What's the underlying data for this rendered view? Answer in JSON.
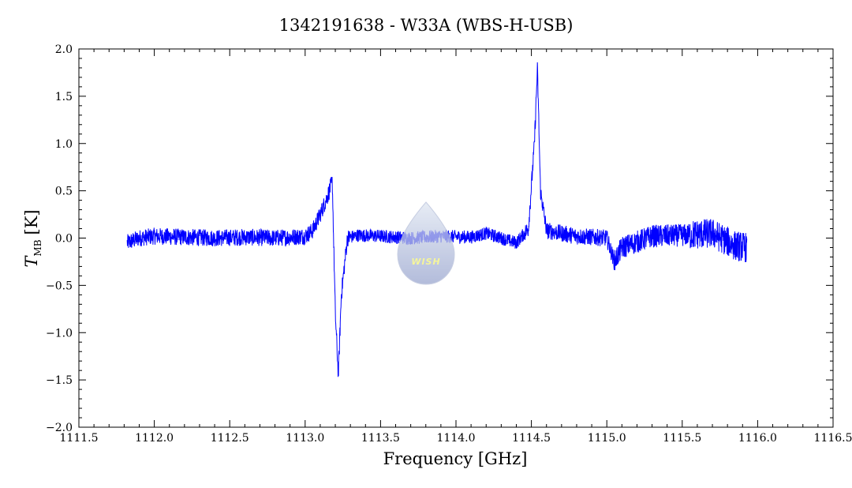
{
  "chart_data": {
    "type": "line",
    "title": "1342191638 - W33A (WBS-H-USB)",
    "xlabel": "Frequency [GHz]",
    "ylabel": {
      "main": "T",
      "sub": "MB",
      "unit": "[K]"
    },
    "xlim": [
      1111.5,
      1116.5
    ],
    "ylim": [
      -2.0,
      2.0
    ],
    "xticks": [
      "1111.5",
      "1112.0",
      "1112.5",
      "1113.0",
      "1113.5",
      "1114.0",
      "1114.5",
      "1115.0",
      "1115.5",
      "1116.0",
      "1116.5"
    ],
    "yticks": [
      "2.0",
      "1.5",
      "1.0",
      "0.5",
      "0.0",
      "−0.5",
      "−1.0",
      "−1.5",
      "−2.0"
    ],
    "grid": false,
    "series": [
      {
        "color": "#0000ff",
        "x": [
          1111.82,
          1111.9,
          1112.0,
          1112.2,
          1112.4,
          1112.6,
          1112.8,
          1113.0,
          1113.05,
          1113.1,
          1113.15,
          1113.18,
          1113.2,
          1113.22,
          1113.24,
          1113.28,
          1113.35,
          1113.5,
          1113.7,
          1113.9,
          1114.1,
          1114.2,
          1114.3,
          1114.4,
          1114.48,
          1114.52,
          1114.54,
          1114.56,
          1114.6,
          1114.8,
          1115.0,
          1115.05,
          1115.1,
          1115.3,
          1115.5,
          1115.7,
          1115.85,
          1115.93
        ],
        "y": [
          -0.05,
          0.0,
          0.02,
          0.01,
          0.0,
          0.01,
          0.0,
          0.02,
          0.08,
          0.25,
          0.45,
          0.6,
          -0.8,
          -1.45,
          -0.6,
          0.0,
          0.03,
          0.02,
          0.0,
          0.02,
          0.01,
          0.05,
          0.0,
          -0.05,
          0.1,
          1.0,
          1.8,
          0.5,
          0.08,
          0.02,
          0.0,
          -0.25,
          -0.1,
          0.02,
          0.03,
          0.05,
          -0.08,
          -0.1
        ]
      }
    ]
  },
  "watermark": {
    "text": "WISH"
  }
}
